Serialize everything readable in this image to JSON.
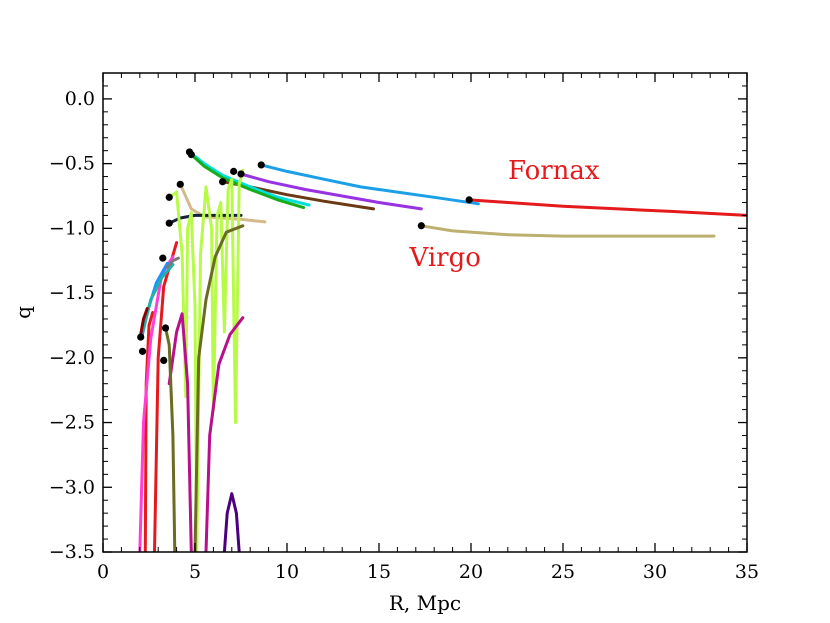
{
  "chart_data": {
    "type": "line",
    "title": "",
    "xlabel": "R, Mpc",
    "ylabel": "q",
    "xlim": [
      0,
      35
    ],
    "ylim": [
      -3.5,
      0.2
    ],
    "x_ticks": [
      0,
      5,
      10,
      15,
      20,
      25,
      30,
      35
    ],
    "y_ticks": [
      0.0,
      -0.5,
      -1.0,
      -1.5,
      -2.0,
      -2.5,
      -3.0,
      -3.5
    ],
    "x_tick_labels": [
      "0",
      "5",
      "10",
      "15",
      "20",
      "25",
      "30",
      "35"
    ],
    "y_tick_labels": [
      "0.0",
      "−0.5",
      "−1.0",
      "−1.5",
      "−2.0",
      "−2.5",
      "−3.0",
      "−3.5"
    ],
    "grid": false,
    "annotations": [
      {
        "text": "Fornax",
        "x": 24.5,
        "y": -0.62,
        "color": "#e41a1c"
      },
      {
        "text": "Virgo",
        "x": 18.6,
        "y": -1.29,
        "color": "#e41a1c"
      }
    ],
    "series": [
      {
        "color": "#e41a1c",
        "points": [
          [
            19.9,
            -0.78
          ],
          [
            22,
            -0.8
          ],
          [
            25,
            -0.83
          ],
          [
            28,
            -0.85
          ],
          [
            31,
            -0.87
          ],
          [
            35,
            -0.9
          ]
        ]
      },
      {
        "color": "#bcb070",
        "points": [
          [
            17.3,
            -0.98
          ],
          [
            19,
            -1.02
          ],
          [
            22,
            -1.05
          ],
          [
            25,
            -1.06
          ],
          [
            28,
            -1.06
          ],
          [
            31,
            -1.06
          ],
          [
            33.2,
            -1.06
          ]
        ]
      },
      {
        "color": "#1a9fe8",
        "points": [
          [
            8.6,
            -0.51
          ],
          [
            10,
            -0.56
          ],
          [
            12,
            -0.62
          ],
          [
            14,
            -0.68
          ],
          [
            16,
            -0.72
          ],
          [
            18,
            -0.76
          ],
          [
            20.4,
            -0.81
          ]
        ]
      },
      {
        "color": "#9932e0",
        "points": [
          [
            7.5,
            -0.58
          ],
          [
            9,
            -0.64
          ],
          [
            11,
            -0.7
          ],
          [
            13,
            -0.75
          ],
          [
            15,
            -0.8
          ],
          [
            17.3,
            -0.85
          ]
        ]
      },
      {
        "color": "#6b3a14",
        "points": [
          [
            6.5,
            -0.64
          ],
          [
            8,
            -0.68
          ],
          [
            10,
            -0.74
          ],
          [
            12,
            -0.79
          ],
          [
            14.7,
            -0.85
          ]
        ]
      },
      {
        "color": "#00dede",
        "points": [
          [
            4.7,
            -0.41
          ],
          [
            5.5,
            -0.5
          ],
          [
            6.5,
            -0.59
          ],
          [
            8,
            -0.68
          ],
          [
            9.5,
            -0.76
          ],
          [
            11.2,
            -0.82
          ]
        ]
      },
      {
        "color": "#1aab1a",
        "points": [
          [
            4.8,
            -0.43
          ],
          [
            5.5,
            -0.52
          ],
          [
            6.5,
            -0.61
          ],
          [
            8,
            -0.7
          ],
          [
            9.5,
            -0.78
          ],
          [
            10.9,
            -0.84
          ]
        ]
      },
      {
        "color": "#d6b98a",
        "points": [
          [
            4.2,
            -0.66
          ],
          [
            4.8,
            -0.85
          ],
          [
            5.5,
            -0.91
          ],
          [
            6.5,
            -0.92
          ],
          [
            7.5,
            -0.93
          ],
          [
            8.8,
            -0.95
          ]
        ]
      },
      {
        "color": "#16213e",
        "points": [
          [
            3.6,
            -0.96
          ],
          [
            4.2,
            -0.92
          ],
          [
            5,
            -0.9
          ],
          [
            6,
            -0.9
          ],
          [
            7.5,
            -0.9
          ]
        ]
      },
      {
        "color": "#b8fa48",
        "points": [
          [
            3.7,
            -0.75
          ],
          [
            4.0,
            -0.72
          ],
          [
            4.3,
            -1.2
          ],
          [
            4.5,
            -2.3
          ],
          [
            4.6,
            -1.0
          ],
          [
            4.8,
            -0.88
          ],
          [
            5.0,
            -1.6
          ],
          [
            5.1,
            -3.5
          ],
          [
            5.3,
            -1.2
          ],
          [
            5.6,
            -0.68
          ],
          [
            5.9,
            -1.0
          ],
          [
            6.0,
            -2.4
          ],
          [
            6.2,
            -0.9
          ],
          [
            6.4,
            -0.8
          ],
          [
            6.6,
            -1.8
          ],
          [
            6.8,
            -0.7
          ],
          [
            7.0,
            -0.62
          ],
          [
            7.2,
            -2.5
          ],
          [
            7.4,
            -0.66
          ],
          [
            7.6,
            -0.55
          ]
        ]
      },
      {
        "color": "#6b6b22",
        "points": [
          [
            5.0,
            -3.5
          ],
          [
            5.2,
            -2.0
          ],
          [
            5.6,
            -1.55
          ],
          [
            6.1,
            -1.22
          ],
          [
            6.7,
            -1.03
          ],
          [
            7.6,
            -0.98
          ]
        ]
      },
      {
        "color": "#b8108a",
        "points": [
          [
            3.6,
            -2.2
          ],
          [
            4.0,
            -1.8
          ],
          [
            4.3,
            -1.66
          ],
          [
            4.6,
            -2.2
          ],
          [
            4.8,
            -3.5
          ]
        ]
      },
      {
        "color": "#b8108a",
        "points": [
          [
            5.6,
            -3.5
          ],
          [
            5.8,
            -2.6
          ],
          [
            6.3,
            -2.05
          ],
          [
            6.9,
            -1.82
          ],
          [
            7.6,
            -1.69
          ]
        ]
      },
      {
        "color": "#6b6b22",
        "points": [
          [
            3.4,
            -1.77
          ],
          [
            3.6,
            -1.9
          ],
          [
            3.8,
            -2.6
          ],
          [
            3.9,
            -3.5
          ]
        ]
      },
      {
        "color": "#4b0082",
        "points": [
          [
            6.6,
            -3.5
          ],
          [
            6.75,
            -3.2
          ],
          [
            7.0,
            -3.05
          ],
          [
            7.25,
            -3.2
          ],
          [
            7.4,
            -3.5
          ]
        ]
      },
      {
        "color": "#e41a1c",
        "points": [
          [
            2.8,
            -3.5
          ],
          [
            3.0,
            -2.0
          ],
          [
            3.3,
            -1.45
          ],
          [
            4.0,
            -1.11
          ]
        ]
      },
      {
        "color": "#e41a1c",
        "points": [
          [
            2.3,
            -3.5
          ],
          [
            2.35,
            -2.2
          ],
          [
            2.5,
            -1.75
          ],
          [
            2.7,
            -1.65
          ]
        ]
      },
      {
        "color": "#ff3fd5",
        "points": [
          [
            2.0,
            -3.5
          ],
          [
            2.2,
            -2.5
          ],
          [
            2.6,
            -1.85
          ],
          [
            3.2,
            -1.35
          ],
          [
            3.8,
            -1.22
          ]
        ]
      },
      {
        "color": "#1e90ff",
        "points": [
          [
            2.1,
            -1.85
          ],
          [
            2.4,
            -1.65
          ],
          [
            2.9,
            -1.42
          ],
          [
            3.5,
            -1.27
          ]
        ]
      },
      {
        "color": "#20b2aa",
        "points": [
          [
            2.2,
            -1.78
          ],
          [
            2.6,
            -1.55
          ],
          [
            3.2,
            -1.38
          ],
          [
            3.8,
            -1.28
          ]
        ]
      },
      {
        "color": "#8b0000",
        "points": [
          [
            2.05,
            -1.82
          ],
          [
            2.2,
            -1.7
          ],
          [
            2.4,
            -1.62
          ]
        ]
      },
      {
        "color": "#7a7a7a",
        "points": [
          [
            3.5,
            -1.3
          ],
          [
            3.8,
            -1.25
          ],
          [
            4.1,
            -1.23
          ]
        ]
      }
    ],
    "markers": [
      [
        19.9,
        -0.78
      ],
      [
        17.3,
        -0.98
      ],
      [
        8.6,
        -0.51
      ],
      [
        7.5,
        -0.58
      ],
      [
        7.1,
        -0.56
      ],
      [
        4.7,
        -0.41
      ],
      [
        4.8,
        -0.43
      ],
      [
        4.2,
        -0.66
      ],
      [
        3.6,
        -0.76
      ],
      [
        3.6,
        -0.96
      ],
      [
        6.5,
        -0.64
      ],
      [
        3.4,
        -1.77
      ],
      [
        3.3,
        -2.02
      ],
      [
        2.05,
        -1.84
      ],
      [
        2.15,
        -1.95
      ],
      [
        3.25,
        -1.23
      ]
    ]
  }
}
